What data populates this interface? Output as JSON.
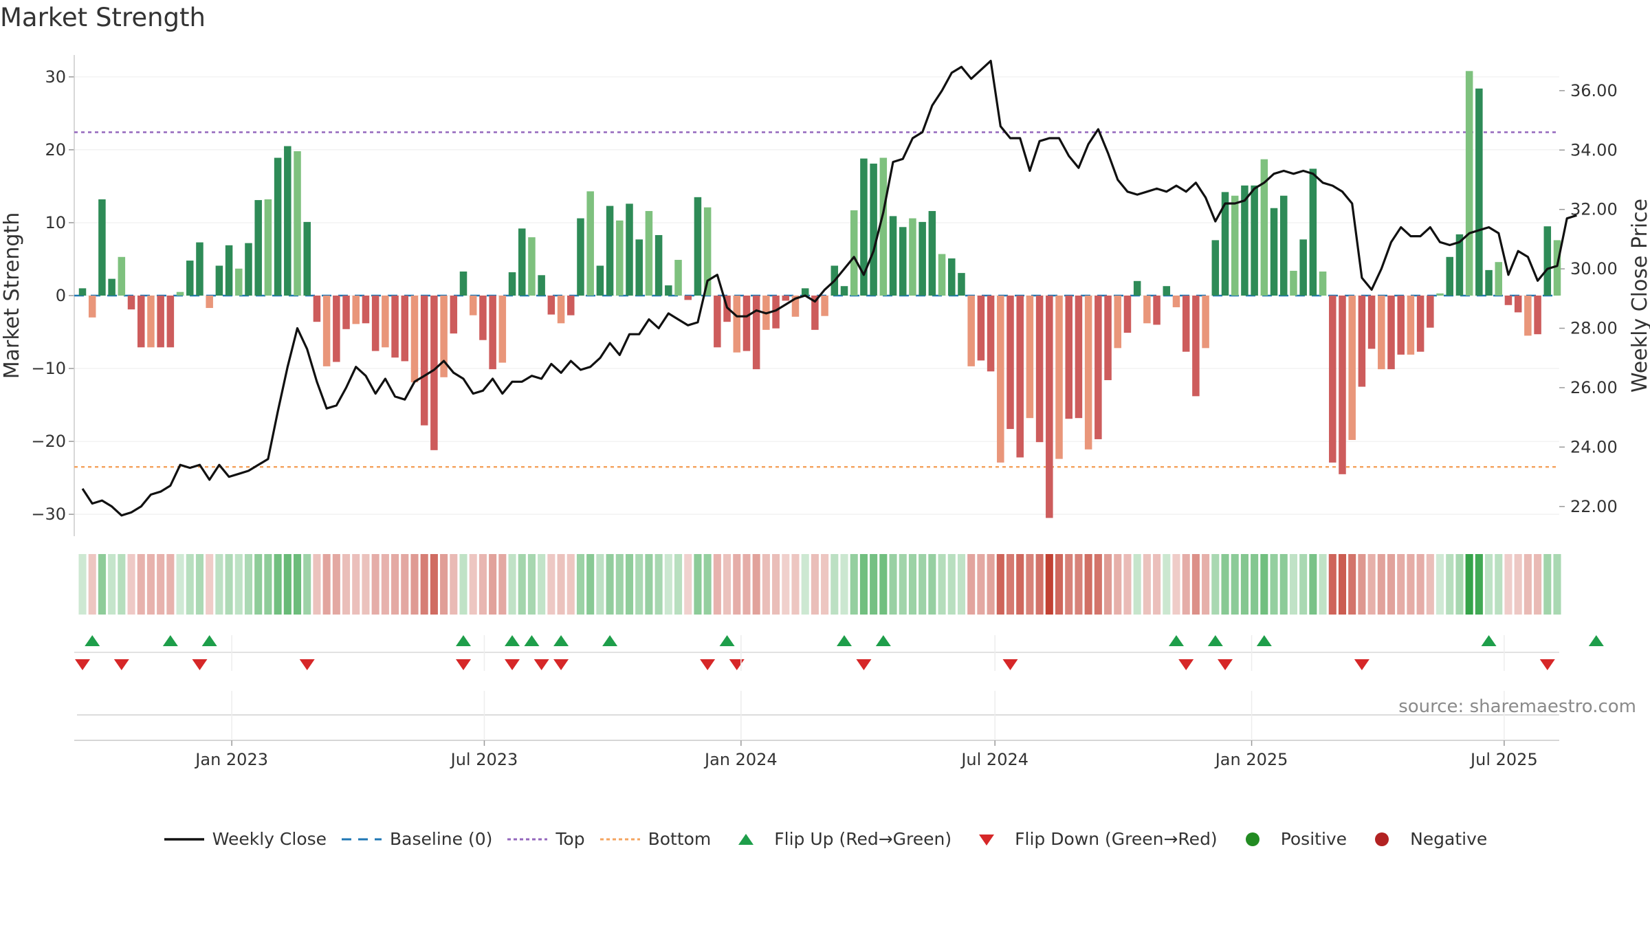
{
  "title": "Market Strength",
  "source": "source: sharemaestro.com",
  "colors": {
    "positive_dark": "#2e8b57",
    "positive_light": "#7ec17e",
    "negative_dark": "#cd5c5c",
    "negative_light": "#e9967a",
    "line": "#111111",
    "baseline": "#1f77b4",
    "top": "#9467bd",
    "bottom": "#f4a460",
    "flip_up": "#1e9e4a",
    "flip_down": "#d62728",
    "dot_positive": "#228b22",
    "dot_negative": "#b22222"
  },
  "legend": [
    {
      "label": "Weekly Close",
      "icon": "line-solid"
    },
    {
      "label": "Baseline (0)",
      "icon": "line-dashed"
    },
    {
      "label": "Top",
      "icon": "line-dotted-purple"
    },
    {
      "label": "Bottom",
      "icon": "line-dotted-orange"
    },
    {
      "label": "Flip Up (Red→Green)",
      "icon": "triangle-up"
    },
    {
      "label": "Flip Down (Green→Red)",
      "icon": "triangle-down"
    },
    {
      "label": "Positive",
      "icon": "dot-green"
    },
    {
      "label": "Negative",
      "icon": "dot-red"
    }
  ],
  "chart_data": {
    "type": "bar",
    "start_date": "2022-09-16",
    "xlabel": "",
    "ylabel": "Market Strength",
    "ylabel_right": "Weekly Close Price",
    "ylim": [
      -33,
      33
    ],
    "ylim_right": [
      21.0,
      37.2
    ],
    "yticks_left": [
      "30",
      "20",
      "10",
      "0",
      "−10",
      "−20",
      "−30"
    ],
    "yticks_right": [
      "36.00",
      "34.00",
      "32.00",
      "30.00",
      "28.00",
      "26.00",
      "24.00",
      "22.00"
    ],
    "x_ticks": [
      "Jan 2023",
      "Jul 2023",
      "Jan 2024",
      "Jul 2024",
      "Jan 2025",
      "Jul 2025"
    ],
    "x_tick_dates": [
      "2023-01-01",
      "2023-07-01",
      "2024-01-01",
      "2024-07-01",
      "2025-01-01",
      "2025-07-01"
    ],
    "top_level": 22.4,
    "bottom_level": -23.5,
    "baseline": 0,
    "strength": [
      1,
      -3,
      13.2,
      2.3,
      5.3,
      -1.9,
      -7.1,
      -7.1,
      -7.1,
      -7.1,
      0.5,
      4.8,
      7.3,
      -1.7,
      4.1,
      6.9,
      3.7,
      7.2,
      13.1,
      13.2,
      18.9,
      20.5,
      19.8,
      10.1,
      -3.6,
      -9.7,
      -9.1,
      -4.6,
      -3.9,
      -3.8,
      -7.6,
      -7.1,
      -8.5,
      -9,
      -11.9,
      -17.8,
      -21.2,
      -11.2,
      -5.2,
      3.3,
      -2.7,
      -6.1,
      -10.1,
      -9.2,
      3.2,
      9.2,
      8,
      2.8,
      -2.6,
      -3.8,
      -2.7,
      10.6,
      14.3,
      4.1,
      12.3,
      10.3,
      12.6,
      7.7,
      11.6,
      8.3,
      1.4,
      4.9,
      -0.6,
      13.5,
      12.1,
      -7.1,
      -3.6,
      -7.8,
      -7.6,
      -10.1,
      -4.7,
      -4.5,
      -0.7,
      -2.9,
      1,
      -4.7,
      -2.8,
      4.1,
      1.3,
      11.7,
      18.8,
      18.1,
      18.9,
      10.9,
      9.4,
      10.6,
      10.1,
      11.6,
      5.7,
      5.1,
      3.1,
      -9.7,
      -8.9,
      -10.4,
      -22.9,
      -18.3,
      -22.2,
      -16.8,
      -20.1,
      -30.5,
      -22.4,
      -16.9,
      -16.8,
      -21.1,
      -19.7,
      -11.6,
      -7.2,
      -5.1,
      2,
      -3.8,
      -4,
      1.3,
      -1.6,
      -7.7,
      -13.8,
      -7.2,
      7.6,
      14.2,
      13.7,
      15.1,
      15.1,
      18.7,
      12,
      13.7,
      3.4,
      7.7,
      17.4,
      3.3,
      -22.9,
      -24.5,
      -19.8,
      -12.5,
      -7.3,
      -10.1,
      -10.1,
      -8.1,
      -8.1,
      -7.7,
      -4.4,
      0.3,
      5.3,
      8.4,
      30.8,
      28.4,
      3.5,
      4.6,
      -1.3,
      -2.3,
      -5.5,
      -5.3,
      9.5,
      7.6
    ],
    "weekly_close": [
      22.6,
      22.1,
      22.2,
      22.0,
      21.7,
      21.8,
      22.0,
      22.4,
      22.5,
      22.7,
      23.4,
      23.3,
      23.4,
      22.9,
      23.4,
      23.0,
      23.1,
      23.2,
      23.4,
      23.6,
      25.2,
      26.7,
      28.0,
      27.3,
      26.2,
      25.3,
      25.4,
      26.0,
      26.7,
      26.4,
      25.8,
      26.3,
      25.7,
      25.6,
      26.2,
      26.4,
      26.6,
      26.9,
      26.5,
      26.3,
      25.8,
      25.9,
      26.3,
      25.8,
      26.2,
      26.2,
      26.4,
      26.3,
      26.8,
      26.5,
      26.9,
      26.6,
      26.7,
      27.0,
      27.5,
      27.1,
      27.8,
      27.8,
      28.3,
      28.0,
      28.5,
      28.3,
      28.1,
      28.2,
      29.6,
      29.8,
      28.7,
      28.4,
      28.4,
      28.6,
      28.5,
      28.6,
      28.8,
      29.0,
      29.1,
      28.9,
      29.3,
      29.6,
      30.0,
      30.4,
      29.8,
      30.6,
      31.9,
      33.6,
      33.7,
      34.4,
      34.6,
      35.5,
      36.0,
      36.6,
      36.8,
      36.4,
      36.7,
      37.0,
      34.8,
      34.4,
      34.4,
      33.3,
      34.3,
      34.4,
      34.4,
      33.8,
      33.4,
      34.2,
      34.7,
      33.9,
      33.0,
      32.6,
      32.5,
      32.6,
      32.7,
      32.6,
      32.8,
      32.6,
      32.9,
      32.4,
      31.6,
      32.2,
      32.2,
      32.3,
      32.7,
      32.9,
      33.2,
      33.3,
      33.2,
      33.3,
      33.2,
      32.9,
      32.8,
      32.6,
      32.2,
      29.7,
      29.3,
      30.0,
      30.9,
      31.4,
      31.1,
      31.1,
      31.4,
      30.9,
      30.8,
      30.9,
      31.2,
      31.3,
      31.4,
      31.2,
      29.8,
      30.6,
      30.4,
      29.6,
      30.0,
      30.1,
      31.7,
      31.8
    ],
    "flip_up_weeks": [
      1,
      9,
      13,
      39,
      44,
      46,
      49,
      54,
      66,
      78,
      82,
      112,
      116,
      121,
      144,
      155
    ],
    "flip_down_weeks": [
      0,
      4,
      12,
      23,
      39,
      44,
      47,
      49,
      64,
      67,
      80,
      95,
      113,
      117,
      131,
      150
    ]
  }
}
